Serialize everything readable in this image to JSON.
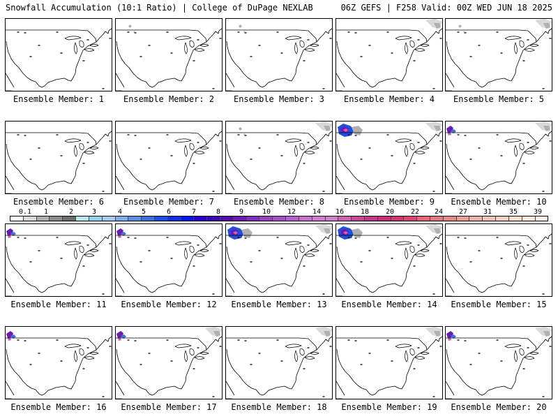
{
  "header": {
    "title_left": "Snowfall Accumulation (10:1 Ratio) | College of DuPage NEXLAB",
    "title_right": "06Z GEFS | F258 Valid: 00Z WED JUN 18 2025"
  },
  "panels": [
    {
      "label": "Ensemble Member: 1",
      "snow": []
    },
    {
      "label": "Ensemble Member: 2",
      "snow": [
        "nw-light"
      ]
    },
    {
      "label": "Ensemble Member: 3",
      "snow": [
        "nw-light"
      ]
    },
    {
      "label": "Ensemble Member: 4",
      "snow": [
        "ne-light"
      ]
    },
    {
      "label": "Ensemble Member: 5",
      "snow": [
        "ne-light",
        "nw-light"
      ]
    },
    {
      "label": "Ensemble Member: 6",
      "snow": []
    },
    {
      "label": "Ensemble Member: 7",
      "snow": []
    },
    {
      "label": "Ensemble Member: 8",
      "snow": [
        "nw-light",
        "ne-light"
      ]
    },
    {
      "label": "Ensemble Member: 9",
      "snow": [
        "nw-heavy",
        "ne-light"
      ]
    },
    {
      "label": "Ensemble Member: 10",
      "snow": [
        "nw-medium",
        "ne-light"
      ]
    },
    {
      "label": "Ensemble Member: 11",
      "snow": [
        "nw-medium"
      ]
    },
    {
      "label": "Ensemble Member: 12",
      "snow": [
        "nw-medium"
      ]
    },
    {
      "label": "Ensemble Member: 13",
      "snow": [
        "nw-heavy",
        "ne-light"
      ]
    },
    {
      "label": "Ensemble Member: 14",
      "snow": [
        "nw-heavy",
        "ne-light"
      ]
    },
    {
      "label": "Ensemble Member: 15",
      "snow": []
    },
    {
      "label": "Ensemble Member: 16",
      "snow": [
        "nw-medium"
      ]
    },
    {
      "label": "Ensemble Member: 17",
      "snow": [
        "nw-medium",
        "ne-light"
      ]
    },
    {
      "label": "Ensemble Member: 18",
      "snow": [
        "ne-light"
      ]
    },
    {
      "label": "Ensemble Member: 19",
      "snow": [
        "ne-light"
      ]
    },
    {
      "label": "Ensemble Member: 20",
      "snow": [
        "nw-medium",
        "ne-light"
      ]
    }
  ],
  "colorbar": {
    "labels": [
      "0.1",
      "1",
      "2",
      "3",
      "4",
      "5",
      "6",
      "7",
      "8",
      "9",
      "10",
      "12",
      "14",
      "16",
      "18",
      "20",
      "22",
      "24",
      "27",
      "31",
      "35",
      "39"
    ],
    "colors": [
      "#ffffff",
      "#d9d9d9",
      "#b0b0b0",
      "#8c8c8c",
      "#6e6e6e",
      "#b8e8ee",
      "#8fd3e8",
      "#a9c9f0",
      "#7faee8",
      "#5a8ee0",
      "#3c6fe0",
      "#1f4fe0",
      "#1030e8",
      "#0018f0",
      "#2a00c8",
      "#3a08b0",
      "#5010a8",
      "#6a1cb0",
      "#8030b8",
      "#9a44c0",
      "#a850c8",
      "#b860d0",
      "#c870d0",
      "#d07ad0",
      "#d080c8",
      "#d060b0",
      "#c84898",
      "#c03888",
      "#c83078",
      "#d03870",
      "#d84870",
      "#e06878",
      "#e27a80",
      "#e48a88",
      "#e8a098",
      "#ecb4a8",
      "#f0c4b4",
      "#f4d2c0",
      "#f8e0cc",
      "#fbeadc",
      "#fdf2e6"
    ]
  }
}
